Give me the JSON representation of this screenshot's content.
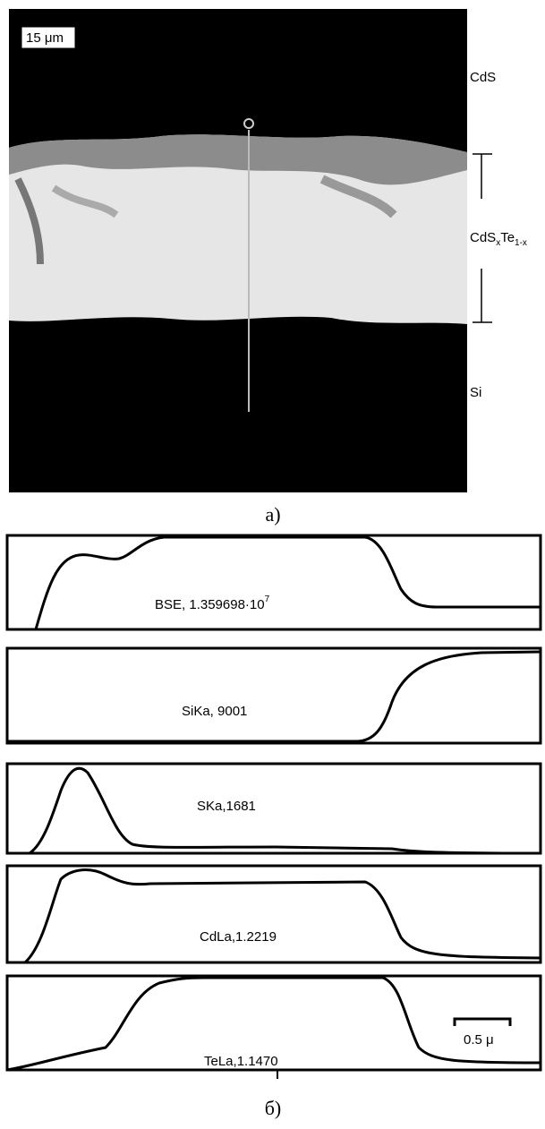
{
  "image": {
    "scale": "15 μm",
    "layers": {
      "top": "CdS",
      "middle": {
        "base": "CdS",
        "sub1": "x",
        "mid": "Te",
        "sub2": "1-x"
      },
      "bottom": "Si"
    },
    "caption": "а)"
  },
  "profiles": {
    "panels": [
      {
        "label": "BSE, 1.359698·10",
        "sup": "7"
      },
      {
        "label": "SiKa, 9001"
      },
      {
        "label": "SKa,1681"
      },
      {
        "label": "CdLa,1.2219"
      },
      {
        "label": "TeLa,1.1470"
      }
    ],
    "scale_bar": "0.5 μ",
    "caption": "б)"
  }
}
